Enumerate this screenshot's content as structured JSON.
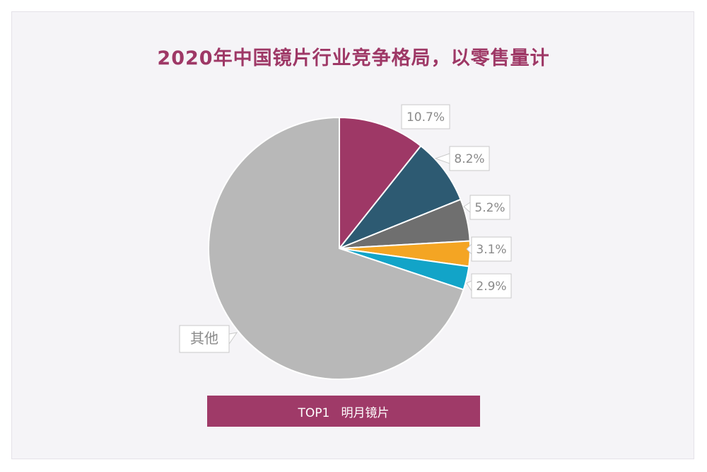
{
  "chart_data": {
    "type": "pie",
    "title": "2020年中国镜片行业竞争格局，以零售量计",
    "slices": [
      {
        "label": "",
        "value": 10.7,
        "display": "10.7%",
        "color": "#9e3866"
      },
      {
        "label": "",
        "value": 8.2,
        "display": "8.2%",
        "color": "#2d5a72"
      },
      {
        "label": "",
        "value": 5.2,
        "display": "5.2%",
        "color": "#6f6f6f"
      },
      {
        "label": "",
        "value": 3.1,
        "display": "3.1%",
        "color": "#f4a523"
      },
      {
        "label": "",
        "value": 2.9,
        "display": "2.9%",
        "color": "#12a4c8"
      },
      {
        "label": "其他",
        "value": 69.9,
        "display": "其他",
        "color": "#b8b8b8"
      }
    ],
    "start_angle": "12 o'clock",
    "direction": "clockwise"
  },
  "banner": {
    "text": "TOP1   明月镜片"
  }
}
